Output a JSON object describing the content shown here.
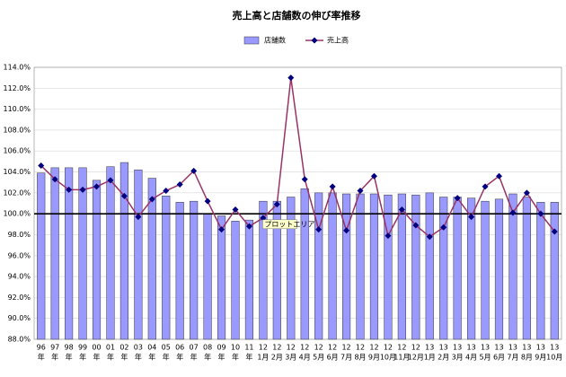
{
  "chart_data": {
    "type": "bar_line",
    "title": "売上高と店舗数の伸び率推移",
    "category_years": [
      "96",
      "97",
      "98",
      "99",
      "00",
      "01",
      "02",
      "03",
      "04",
      "05",
      "06",
      "07",
      "08",
      "09",
      "10",
      "11",
      "12",
      "12",
      "12",
      "12",
      "12",
      "12",
      "12",
      "12",
      "12",
      "12",
      "12",
      "12",
      "13",
      "13",
      "13",
      "13",
      "13",
      "13",
      "13",
      "13",
      "13",
      "13"
    ],
    "category_units": [
      "年",
      "年",
      "年",
      "年",
      "年",
      "年",
      "年",
      "年",
      "年",
      "年",
      "年",
      "年",
      "年",
      "年",
      "年",
      "年",
      "1月",
      "2月",
      "3月",
      "4月",
      "5月",
      "6月",
      "7月",
      "8月",
      "9月",
      "10月",
      "11月",
      "12月",
      "1月",
      "2月",
      "3月",
      "4月",
      "5月",
      "6月",
      "7月",
      "8月",
      "9月",
      "10月"
    ],
    "series": [
      {
        "name": "店舗数",
        "type": "bar",
        "color": "#9999ff",
        "values": [
          103.9,
          104.4,
          104.4,
          104.4,
          103.2,
          104.5,
          104.9,
          104.2,
          103.4,
          101.7,
          101.1,
          101.2,
          100.0,
          99.8,
          99.3,
          99.4,
          101.2,
          101.2,
          101.6,
          102.4,
          102.0,
          102.0,
          101.9,
          101.9,
          101.9,
          101.8,
          101.9,
          101.8,
          102.0,
          101.6,
          101.6,
          101.5,
          101.2,
          101.4,
          101.9,
          101.6,
          101.1,
          101.1
        ]
      },
      {
        "name": "売上高",
        "type": "line",
        "color": "#993366",
        "marker_color": "#000080",
        "values": [
          104.6,
          103.3,
          102.3,
          102.3,
          102.6,
          103.2,
          101.7,
          99.7,
          101.4,
          102.2,
          102.8,
          104.1,
          101.2,
          98.5,
          100.4,
          98.8,
          99.6,
          100.9,
          113.0,
          103.3,
          98.5,
          102.6,
          98.4,
          102.2,
          103.6,
          97.9,
          100.4,
          98.9,
          97.8,
          98.7,
          101.5,
          99.7,
          102.6,
          103.6,
          100.1,
          102.0,
          100.0,
          98.3
        ]
      }
    ],
    "ylim": [
      88,
      114
    ],
    "yticks": [
      {
        "value": 88,
        "label": "88.0%"
      },
      {
        "value": 90,
        "label": "90.0%"
      },
      {
        "value": 92,
        "label": "92.0%"
      },
      {
        "value": 94,
        "label": "94.0%"
      },
      {
        "value": 96,
        "label": "96.0%"
      },
      {
        "value": 98,
        "label": "98.0%"
      },
      {
        "value": 100,
        "label": "100.0%"
      },
      {
        "value": 102,
        "label": "102.0%"
      },
      {
        "value": 104,
        "label": "104.0%"
      },
      {
        "value": 106,
        "label": "106.0%"
      },
      {
        "value": 108,
        "label": "108.0%"
      },
      {
        "value": 110,
        "label": "110.0%"
      },
      {
        "value": 112,
        "label": "112.0%"
      },
      {
        "value": 114,
        "label": "114.0%"
      }
    ],
    "baseline": 100,
    "grid": true,
    "annotation": "プロットエリア"
  }
}
